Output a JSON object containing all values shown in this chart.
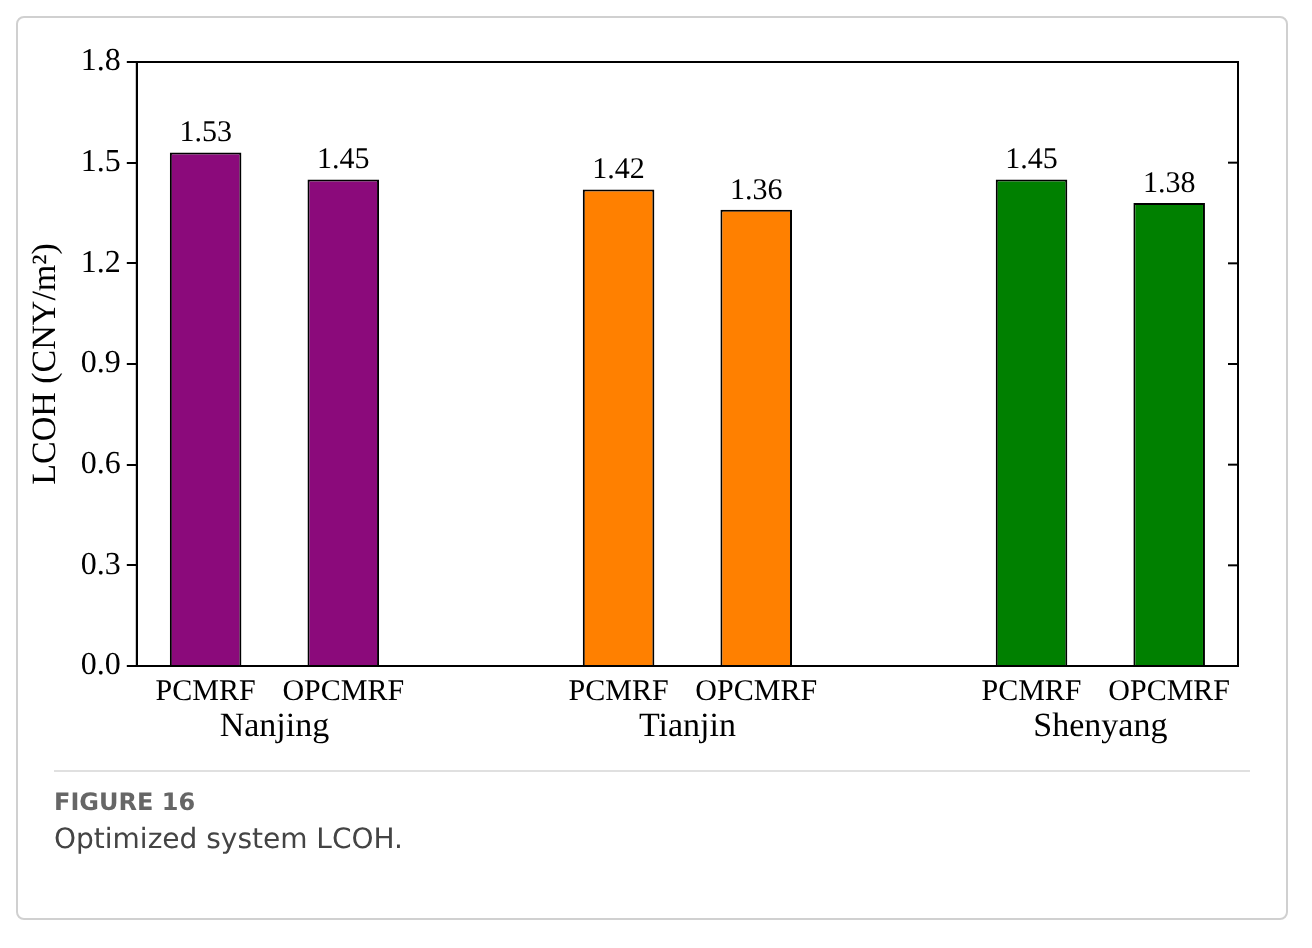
{
  "chart_data": {
    "type": "bar",
    "title": "Optimized system LCOH.",
    "subtitle": "FIGURE 16",
    "ylabel": "LCOH (CNY/m²)",
    "categories": [
      "PCMRF",
      "OPCMRF",
      null,
      "PCMRF",
      "OPCMRF",
      null,
      "PCMRF",
      "OPCMRF"
    ],
    "values": [
      1.53,
      1.45,
      null,
      1.42,
      1.36,
      null,
      1.45,
      1.38
    ],
    "colors": [
      "#8b0a7b",
      "#8b0a7b",
      null,
      "#ff8000",
      "#ff8000",
      null,
      "#008000",
      "#008000"
    ],
    "annotations": [
      "Nanjing",
      "Tianjin",
      "Shenyang"
    ],
    "ylim": [
      0,
      1.8
    ],
    "yticks": [
      {
        "value": 0,
        "label": "0.0"
      },
      {
        "value": 0.3,
        "label": "0.3"
      },
      {
        "value": 0.6,
        "label": "0.6"
      },
      {
        "value": 0.9,
        "label": "0.9"
      },
      {
        "value": 1.2,
        "label": "1.2"
      },
      {
        "value": 1.5,
        "label": "1.5"
      },
      {
        "value": 1.8,
        "label": "1.8"
      }
    ],
    "data_labels": true,
    "grid": false,
    "legend": false
  }
}
